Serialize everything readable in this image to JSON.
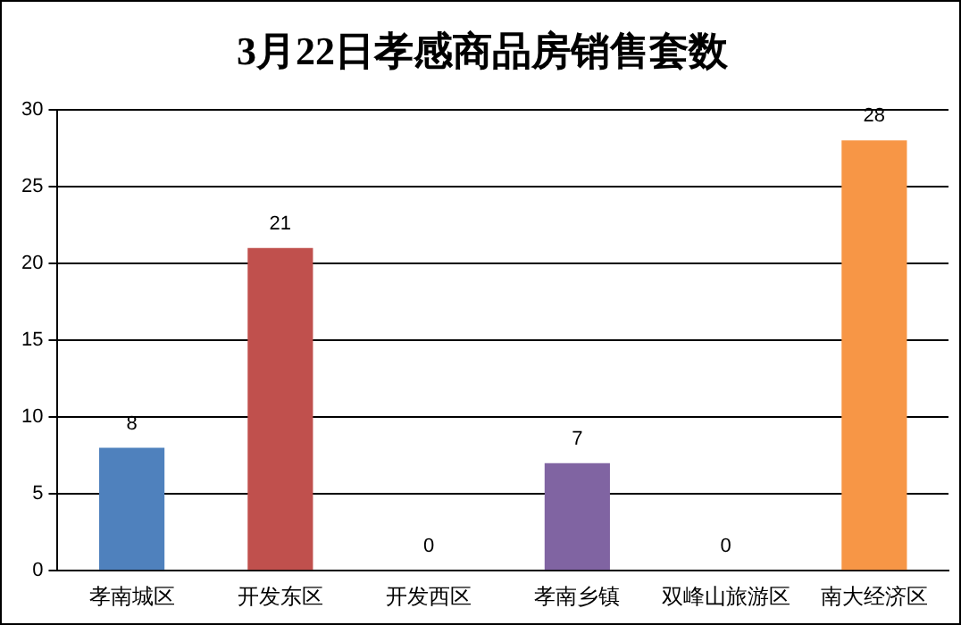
{
  "chart_data": {
    "type": "bar",
    "title": "3月22日孝感商品房销售套数",
    "categories": [
      "孝南城区",
      "开发东区",
      "开发西区",
      "孝南乡镇",
      "双峰山旅游区",
      "南大经济区"
    ],
    "values": [
      8,
      21,
      0,
      7,
      0,
      28
    ],
    "colors": [
      "#4f81bd",
      "#c0504d",
      "#9bbb59",
      "#8064a2",
      "#4bacc6",
      "#f79646"
    ],
    "ylim": [
      0,
      30
    ],
    "yticks": [
      0,
      5,
      10,
      15,
      20,
      25,
      30
    ],
    "grid": "y",
    "legend": false,
    "data_labels": true
  }
}
